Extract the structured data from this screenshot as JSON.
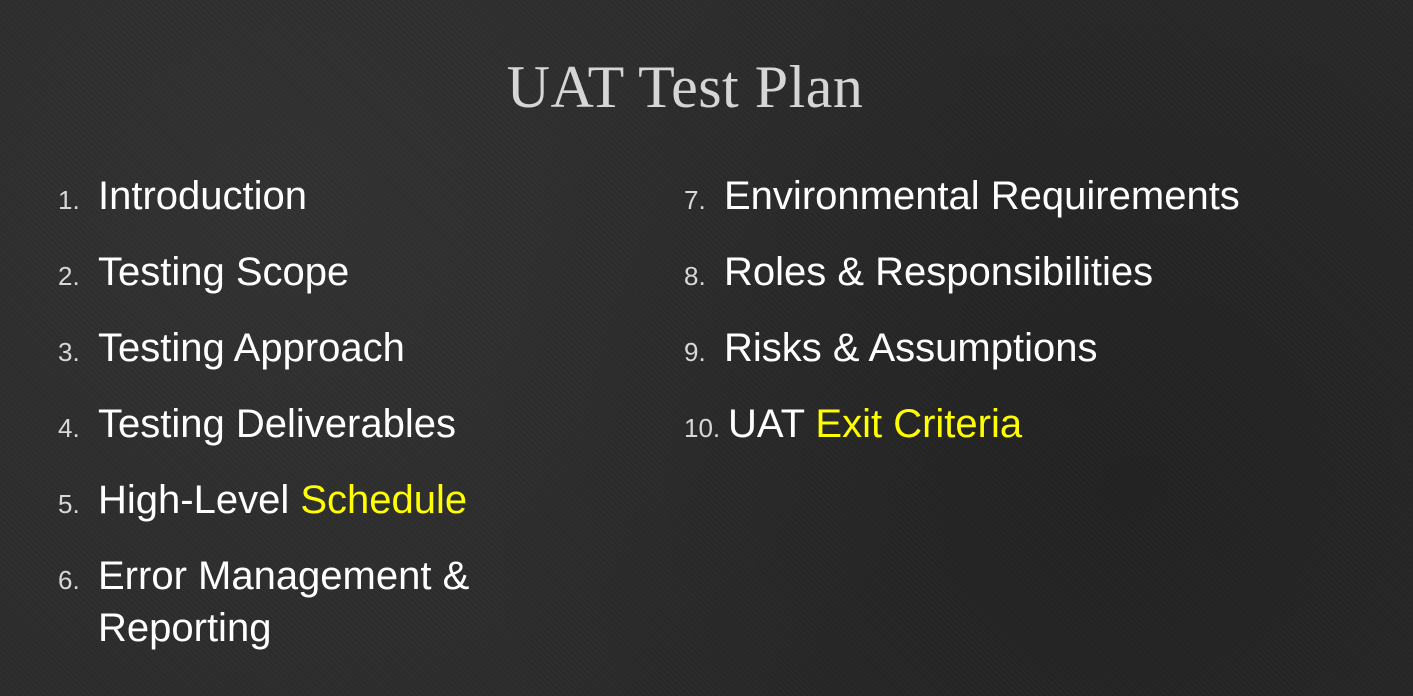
{
  "slide": {
    "title": "UAT Test Plan",
    "colors": {
      "background": "#2a2a2a",
      "title": "#d6d6d6",
      "text": "#ffffff",
      "highlight": "#ffff00"
    },
    "left_items": [
      {
        "num": "1.",
        "text": "Introduction",
        "highlight": ""
      },
      {
        "num": "2.",
        "text": "Testing Scope",
        "highlight": ""
      },
      {
        "num": "3.",
        "text": "Testing Approach",
        "highlight": ""
      },
      {
        "num": "4.",
        "text": "Testing Deliverables",
        "highlight": ""
      },
      {
        "num": "5.",
        "text": "High-Level ",
        "highlight": "Schedule"
      },
      {
        "num": "6.",
        "text": "Error Management & Reporting",
        "highlight": ""
      }
    ],
    "right_items": [
      {
        "num": "7.",
        "text": "Environmental Requirements",
        "highlight": ""
      },
      {
        "num": "8.",
        "text": "Roles & Responsibilities",
        "highlight": ""
      },
      {
        "num": "9.",
        "text": "Risks & Assumptions",
        "highlight": ""
      },
      {
        "num": "10.",
        "text": "UAT ",
        "highlight": "Exit Criteria"
      }
    ]
  }
}
